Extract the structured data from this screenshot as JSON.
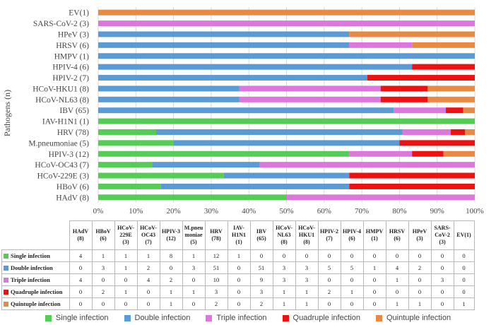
{
  "chart_data": {
    "type": "bar",
    "orientation": "horizontal",
    "stacked": "percent",
    "ylabel": "Pathogens (n)",
    "xticks": [
      "0%",
      "10%",
      "20%",
      "30%",
      "40%",
      "50%",
      "60%",
      "70%",
      "80%",
      "90%",
      "100%"
    ],
    "categories": [
      "HAdV (8)",
      "HBoV (6)",
      "HCoV-229E (3)",
      "HCoV-OC43 (7)",
      "HPIV-3 (12)",
      "M.pneumoniae (5)",
      "HRV (78)",
      "IAV-H1N1 (1)",
      "IBV (65)",
      "HCoV-NL63 (8)",
      "HCoV-HKU1 (8)",
      "HPIV-2 (7)",
      "HPIV-4 (6)",
      "HMPV (1)",
      "HRSV (6)",
      "HPeV (3)",
      "SARS-CoV-2 (3)",
      "EV(1)"
    ],
    "series": [
      {
        "name": "Single infection",
        "color": "#55cc55",
        "values": [
          4,
          1,
          1,
          1,
          8,
          1,
          12,
          1,
          0,
          0,
          0,
          0,
          0,
          0,
          0,
          0,
          0,
          0
        ]
      },
      {
        "name": "Double infection",
        "color": "#5b9bd5",
        "values": [
          0,
          3,
          1,
          2,
          0,
          3,
          51,
          0,
          51,
          3,
          3,
          5,
          5,
          1,
          4,
          2,
          0,
          0
        ]
      },
      {
        "name": "Triple infection",
        "color": "#dd77dd",
        "values": [
          4,
          0,
          0,
          4,
          2,
          0,
          10,
          0,
          9,
          3,
          3,
          0,
          0,
          0,
          1,
          0,
          3,
          0
        ]
      },
      {
        "name": "Quadruple infection",
        "color": "#ee1111",
        "values": [
          0,
          2,
          1,
          0,
          1,
          1,
          3,
          0,
          3,
          1,
          1,
          2,
          1,
          0,
          0,
          0,
          0,
          0
        ]
      },
      {
        "name": "Quintuple infection",
        "color": "#e88a44",
        "values": [
          0,
          0,
          0,
          0,
          1,
          0,
          2,
          0,
          2,
          1,
          1,
          0,
          0,
          0,
          1,
          1,
          0,
          1
        ]
      }
    ],
    "grid": true,
    "legend": "bottom"
  },
  "table": {
    "headers": [
      [
        "HAdV",
        "(8)"
      ],
      [
        "HBoV",
        "(6)"
      ],
      [
        "HCoV-",
        "229E",
        "(3)"
      ],
      [
        "HCoV-",
        "OC43",
        "(7)"
      ],
      [
        "HPIV-3",
        "(12)"
      ],
      [
        "M.pneu",
        "moniae",
        "(5)"
      ],
      [
        "HRV",
        "(78)"
      ],
      [
        "IAV-",
        "H1N1",
        "(1)"
      ],
      [
        "IBV",
        "(65)"
      ],
      [
        "HCoV-",
        "NL63",
        "(8)"
      ],
      [
        "HCoV-",
        "HKU1",
        "(8)"
      ],
      [
        "HPIV-2",
        "(7)"
      ],
      [
        "HPIV-4",
        "(6)"
      ],
      [
        "HMPV",
        "(1)"
      ],
      [
        "HRSV",
        "(6)"
      ],
      [
        "HPeV",
        "(3)"
      ],
      [
        "SARS-",
        "CoV-2",
        "(3)"
      ],
      [
        "EV(1)"
      ]
    ]
  }
}
